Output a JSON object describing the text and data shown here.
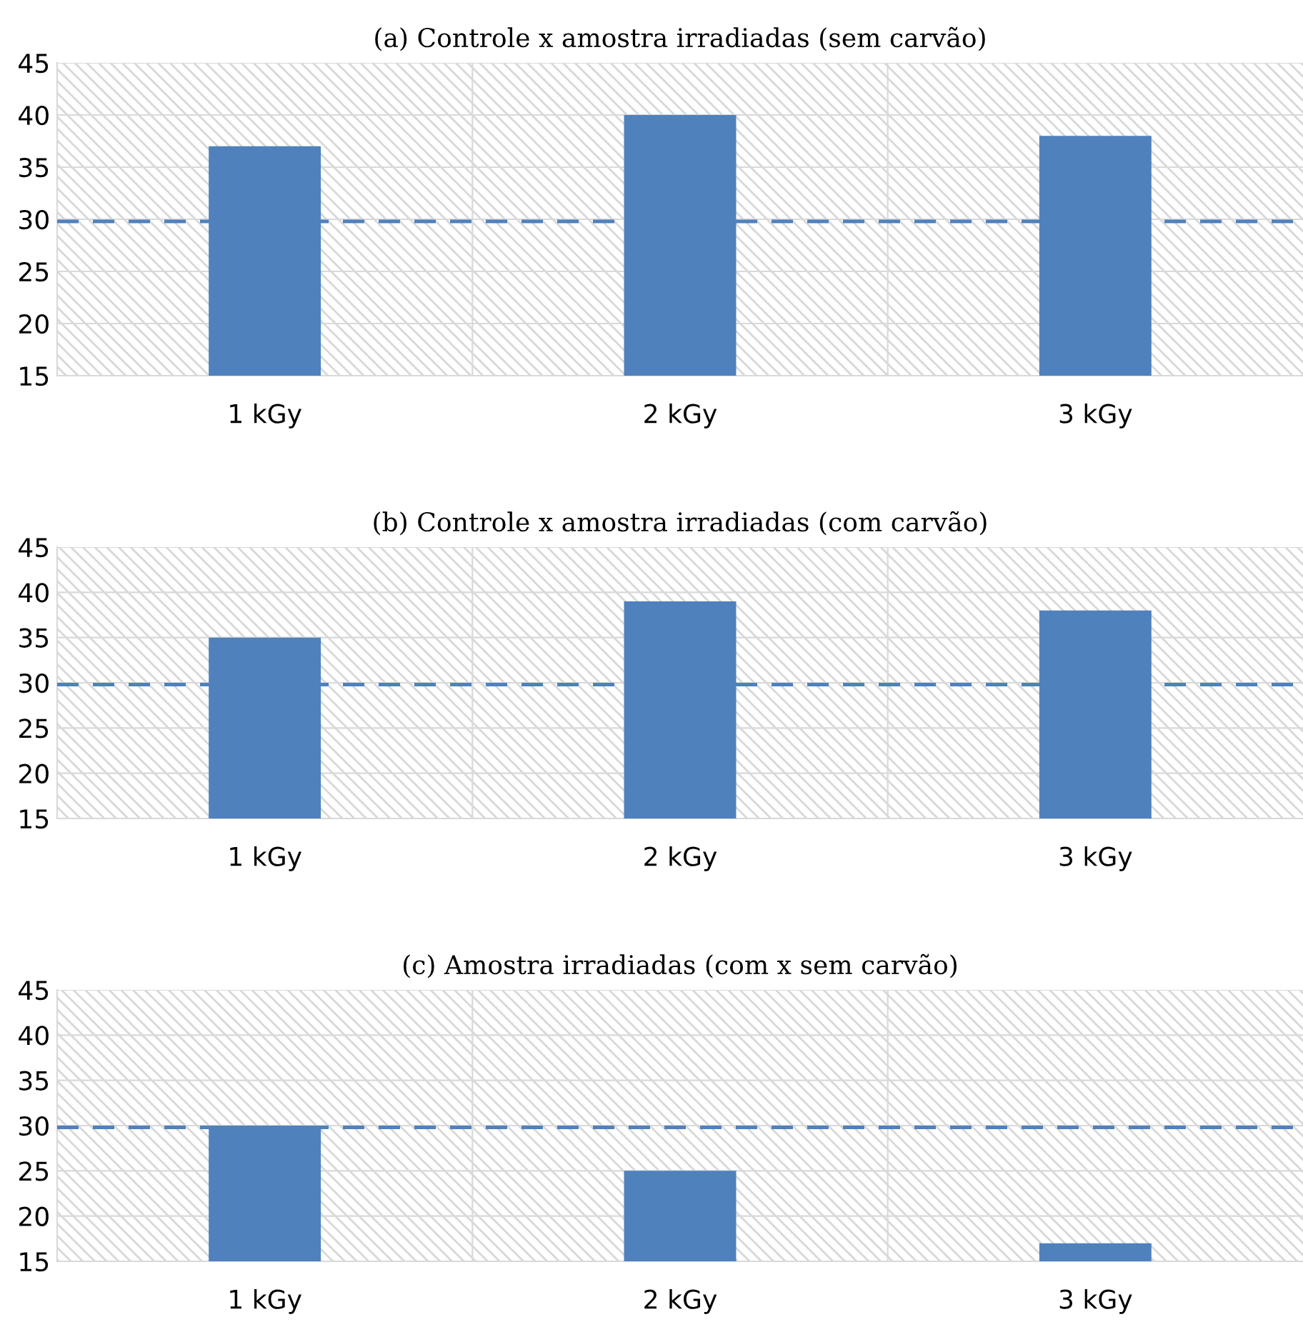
{
  "chart_data": [
    {
      "type": "bar",
      "title": "(a) Controle x amostra irradiadas (sem carvão)",
      "categories": [
        "1 kGy",
        "2 kGy",
        "3 kGy"
      ],
      "values": [
        37,
        40,
        38
      ],
      "color": "#4f81bd",
      "ylim": [
        15,
        45
      ],
      "yticks": [
        15,
        20,
        25,
        30,
        35,
        40,
        45
      ],
      "grid": true,
      "ref_lines": [
        {
          "axis": "y",
          "value": 29.8,
          "color": "#4f81bd",
          "line_style": "dashed"
        }
      ]
    },
    {
      "type": "bar",
      "title": "(b) Controle x amostra irradiadas (com carvão)",
      "categories": [
        "1 kGy",
        "2 kGy",
        "3 kGy"
      ],
      "values": [
        35,
        39,
        38
      ],
      "color": "#4f81bd",
      "ylim": [
        15,
        45
      ],
      "yticks": [
        15,
        20,
        25,
        30,
        35,
        40,
        45
      ],
      "grid": true,
      "ref_lines": [
        {
          "axis": "y",
          "value": 29.8,
          "color": "#4f81bd",
          "line_style": "dashed"
        }
      ]
    },
    {
      "type": "bar",
      "title": "(c) Amostra irradiadas (com x sem carvão)",
      "categories": [
        "1 kGy",
        "2 kGy",
        "3 kGy"
      ],
      "values": [
        30,
        25,
        17
      ],
      "color": "#4f81bd",
      "ylim": [
        15,
        45
      ],
      "yticks": [
        15,
        20,
        25,
        30,
        35,
        40,
        45
      ],
      "grid": true,
      "ref_lines": [
        {
          "axis": "y",
          "value": 29.8,
          "color": "#4f81bd",
          "line_style": "dashed"
        }
      ]
    }
  ]
}
